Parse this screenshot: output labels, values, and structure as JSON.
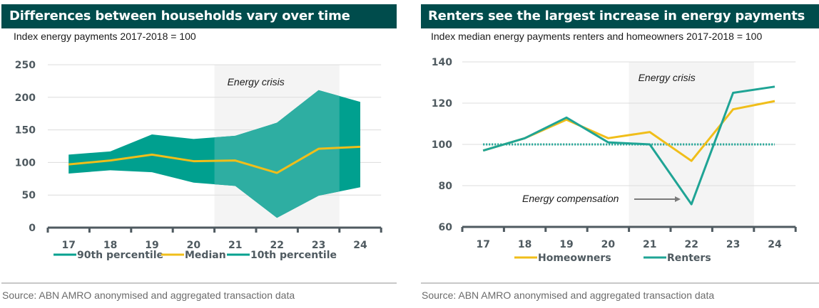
{
  "colors": {
    "title_bg": "#004c4c",
    "band": "#00a08f",
    "band_crisis": "#2eaea2",
    "median": "#f0be1a",
    "homeowners": "#f0be1a",
    "renters": "#1fa495",
    "reference_line": "#1fa495",
    "crisis_shade": "#f4f4f4",
    "axis": "#4f5a60",
    "grid": "#dcdcdc"
  },
  "chart_data": [
    {
      "type": "area",
      "title": "Differences between households vary over time",
      "subtitle": "Index energy payments 2017-2018 = 100",
      "xlabel": "",
      "ylabel": "",
      "categories": [
        "17",
        "18",
        "19",
        "20",
        "21",
        "22",
        "23",
        "24"
      ],
      "ylim": [
        0,
        250
      ],
      "yticks": [
        0,
        50,
        100,
        150,
        200,
        250
      ],
      "grid": true,
      "series": [
        {
          "name": "90th percentile",
          "values": [
            112,
            117,
            143,
            136,
            141,
            161,
            211,
            193
          ]
        },
        {
          "name": "Median",
          "values": [
            97,
            103,
            112,
            102,
            103,
            84,
            121,
            124
          ]
        },
        {
          "name": "10th percentile",
          "values": [
            83,
            88,
            85,
            69,
            64,
            15,
            49,
            62
          ]
        }
      ],
      "shaded_region": {
        "label": "Energy crisis",
        "from": "20.5",
        "to": "23.5"
      },
      "legend": [
        "90th percentile",
        "Median",
        "10th percentile"
      ],
      "legend_position": "bottom",
      "source": "Source: ABN AMRO anonymised and aggregated transaction data"
    },
    {
      "type": "line",
      "title": "Renters see the largest increase in energy payments",
      "subtitle": "Index median energy payments renters and homeowners 2017-2018 = 100",
      "xlabel": "",
      "ylabel": "",
      "categories": [
        "17",
        "18",
        "19",
        "20",
        "21",
        "22",
        "23",
        "24"
      ],
      "ylim": [
        60,
        140
      ],
      "yticks": [
        60,
        80,
        100,
        120,
        140
      ],
      "grid": true,
      "series": [
        {
          "name": "Homeowners",
          "values": [
            97,
            103,
            112,
            103,
            106,
            92,
            117,
            121
          ]
        },
        {
          "name": "Renters",
          "values": [
            97,
            103,
            113,
            101,
            100,
            71,
            125,
            128
          ]
        }
      ],
      "reference_line": {
        "value": 100,
        "style": "dotted"
      },
      "shaded_region": {
        "label": "Energy crisis",
        "from": "20.5",
        "to": "23.5"
      },
      "annotations": [
        {
          "text": "Energy compensation",
          "points_to": {
            "x": "22",
            "series": "Renters"
          }
        }
      ],
      "legend": [
        "Homeowners",
        "Renters"
      ],
      "legend_position": "bottom",
      "source": "Source: ABN AMRO anonymised and aggregated transaction data"
    }
  ]
}
